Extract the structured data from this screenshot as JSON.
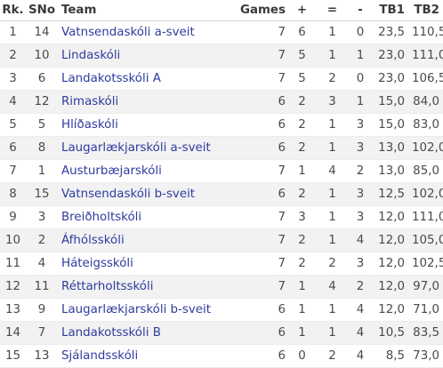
{
  "headers": {
    "rk": "Rk.",
    "sno": "SNo",
    "team": "Team",
    "games": "Games",
    "plus": "+",
    "eq": "=",
    "minus": "-",
    "tb1": "TB1",
    "tb2": "TB2"
  },
  "rows": [
    {
      "rk": "1",
      "sno": "14",
      "team": "Vatnsendaskóli a-sveit",
      "games": "7",
      "plus": "6",
      "eq": "1",
      "minus": "0",
      "tb1": "23,5",
      "tb2": "110,5"
    },
    {
      "rk": "2",
      "sno": "10",
      "team": "Lindaskóli",
      "games": "7",
      "plus": "5",
      "eq": "1",
      "minus": "1",
      "tb1": "23,0",
      "tb2": "111,0"
    },
    {
      "rk": "3",
      "sno": "6",
      "team": "Landakotsskóli A",
      "games": "7",
      "plus": "5",
      "eq": "2",
      "minus": "0",
      "tb1": "23,0",
      "tb2": "106,5"
    },
    {
      "rk": "4",
      "sno": "12",
      "team": "Rimaskóli",
      "games": "6",
      "plus": "2",
      "eq": "3",
      "minus": "1",
      "tb1": "15,0",
      "tb2": "84,0"
    },
    {
      "rk": "5",
      "sno": "5",
      "team": "Hlíðaskóli",
      "games": "6",
      "plus": "2",
      "eq": "1",
      "minus": "3",
      "tb1": "15,0",
      "tb2": "83,0"
    },
    {
      "rk": "6",
      "sno": "8",
      "team": "Laugarlækjarskóli a-sveit",
      "games": "6",
      "plus": "2",
      "eq": "1",
      "minus": "3",
      "tb1": "13,0",
      "tb2": "102,0"
    },
    {
      "rk": "7",
      "sno": "1",
      "team": "Austurbæjarskóli",
      "games": "7",
      "plus": "1",
      "eq": "4",
      "minus": "2",
      "tb1": "13,0",
      "tb2": "85,0"
    },
    {
      "rk": "8",
      "sno": "15",
      "team": "Vatnsendaskóli b-sveit",
      "games": "6",
      "plus": "2",
      "eq": "1",
      "minus": "3",
      "tb1": "12,5",
      "tb2": "102,0"
    },
    {
      "rk": "9",
      "sno": "3",
      "team": "Breiðholtskóli",
      "games": "7",
      "plus": "3",
      "eq": "1",
      "minus": "3",
      "tb1": "12,0",
      "tb2": "111,0"
    },
    {
      "rk": "10",
      "sno": "2",
      "team": "Áfhólsskóli",
      "games": "7",
      "plus": "2",
      "eq": "1",
      "minus": "4",
      "tb1": "12,0",
      "tb2": "105,0"
    },
    {
      "rk": "11",
      "sno": "4",
      "team": "Háteigsskóli",
      "games": "7",
      "plus": "2",
      "eq": "2",
      "minus": "3",
      "tb1": "12,0",
      "tb2": "102,5"
    },
    {
      "rk": "12",
      "sno": "11",
      "team": "Réttarholtsskóli",
      "games": "7",
      "plus": "1",
      "eq": "4",
      "minus": "2",
      "tb1": "12,0",
      "tb2": "97,0"
    },
    {
      "rk": "13",
      "sno": "9",
      "team": "Laugarlækjarskóli b-sveit",
      "games": "6",
      "plus": "1",
      "eq": "1",
      "minus": "4",
      "tb1": "12,0",
      "tb2": "71,0"
    },
    {
      "rk": "14",
      "sno": "7",
      "team": "Landakotsskóli B",
      "games": "6",
      "plus": "1",
      "eq": "1",
      "minus": "4",
      "tb1": "10,5",
      "tb2": "83,5"
    },
    {
      "rk": "15",
      "sno": "13",
      "team": "Sjálandsskóli",
      "games": "6",
      "plus": "0",
      "eq": "2",
      "minus": "4",
      "tb1": "8,5",
      "tb2": "73,0"
    }
  ]
}
